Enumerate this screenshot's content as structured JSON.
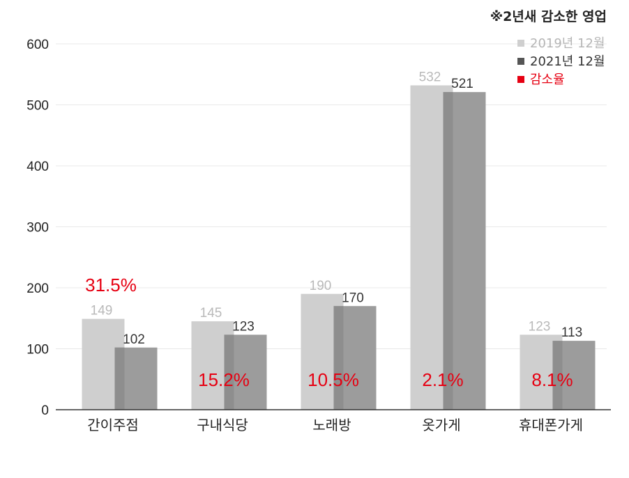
{
  "note": "※2년새 감소한 영업",
  "colors": {
    "s2019": "#cfcfcf",
    "s2021": "#9c9c9c",
    "overlap": "#8e8e8e",
    "rate": "#e60012",
    "grid": "#e8e8e8",
    "axis": "#333333"
  },
  "chart_data": {
    "type": "bar",
    "title": "",
    "xlabel": "",
    "ylabel": "",
    "ylim": [
      0,
      600
    ],
    "yticks": [
      0,
      100,
      200,
      300,
      400,
      500,
      600
    ],
    "grid": true,
    "legend_position": "top-right",
    "categories": [
      "간이주점",
      "구내식당",
      "노래방",
      "옷가게",
      "휴대폰가게"
    ],
    "series": [
      {
        "name": "2019년 12월",
        "values": [
          149,
          145,
          190,
          532,
          123
        ]
      },
      {
        "name": "2021년 12월",
        "values": [
          102,
          123,
          170,
          521,
          113
        ]
      }
    ],
    "rate_legend": "감소율",
    "rates": [
      "31.5%",
      "15.2%",
      "10.5%",
      "2.1%",
      "8.1%"
    ]
  }
}
